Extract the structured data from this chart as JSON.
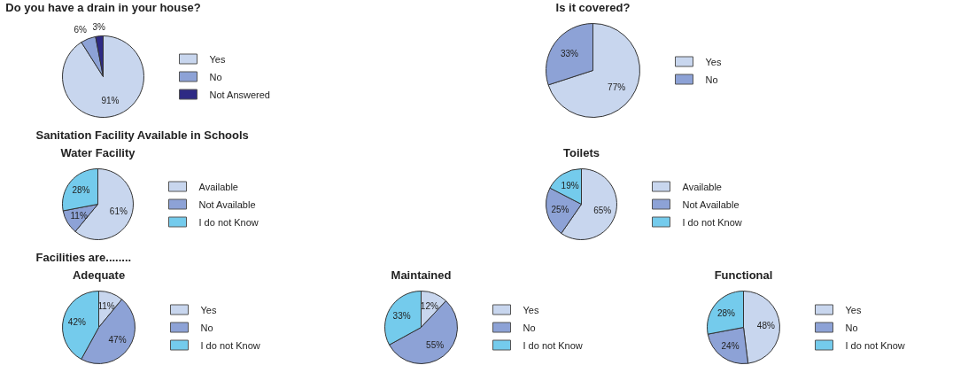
{
  "chart_data": [
    {
      "type": "pie",
      "title": "Do you have a drain in your house?",
      "categories": [
        "Yes",
        "No",
        "Not Answered"
      ],
      "values": [
        91,
        6,
        3
      ],
      "value_labels": [
        "91%",
        "6%",
        "3%"
      ],
      "colors": [
        "#c8d6ee",
        "#8da2d6",
        "#2e2a84"
      ],
      "legend": "right"
    },
    {
      "type": "pie",
      "title": "Is it covered?",
      "categories": [
        "Yes",
        "No"
      ],
      "values": [
        77,
        33
      ],
      "value_labels": [
        "77%",
        "33%"
      ],
      "colors": [
        "#c8d6ee",
        "#8da2d6"
      ],
      "legend": "right"
    },
    {
      "type": "pie",
      "title": "Water Facility",
      "annotations": [
        "Sanitation Facility Available  in Schools"
      ],
      "categories": [
        "Available",
        "Not Available",
        "I do not Know"
      ],
      "values": [
        61,
        11,
        28
      ],
      "value_labels": [
        "61%",
        "11%",
        "28%"
      ],
      "colors": [
        "#c8d6ee",
        "#8da2d6",
        "#74cbec"
      ],
      "legend": "right"
    },
    {
      "type": "pie",
      "title": "Toilets",
      "categories": [
        "Available",
        "Not Available",
        "I do not Know"
      ],
      "values": [
        65,
        25,
        19
      ],
      "value_labels": [
        "65%",
        "25%",
        "19%"
      ],
      "colors": [
        "#c8d6ee",
        "#8da2d6",
        "#74cbec"
      ],
      "legend": "right"
    },
    {
      "type": "pie",
      "title": "Adequate",
      "annotations": [
        "Facilities are........"
      ],
      "categories": [
        "Yes",
        "No",
        "I do not Know"
      ],
      "values": [
        11,
        47,
        42
      ],
      "value_labels": [
        "11%",
        "47%",
        "42%"
      ],
      "colors": [
        "#c8d6ee",
        "#8da2d6",
        "#74cbec"
      ],
      "legend": "right"
    },
    {
      "type": "pie",
      "title": "Maintained",
      "categories": [
        "Yes",
        "No",
        "I do not Know"
      ],
      "values": [
        12,
        55,
        33
      ],
      "value_labels": [
        "12%",
        "55%",
        "33%"
      ],
      "colors": [
        "#c8d6ee",
        "#8da2d6",
        "#74cbec"
      ],
      "legend": "right"
    },
    {
      "type": "pie",
      "title": "Functional",
      "categories": [
        "Yes",
        "No",
        "I do not Know"
      ],
      "values": [
        48,
        24,
        28
      ],
      "value_labels": [
        "48%",
        "24%",
        "28%"
      ],
      "colors": [
        "#c8d6ee",
        "#8da2d6",
        "#74cbec"
      ],
      "legend": "right"
    }
  ]
}
